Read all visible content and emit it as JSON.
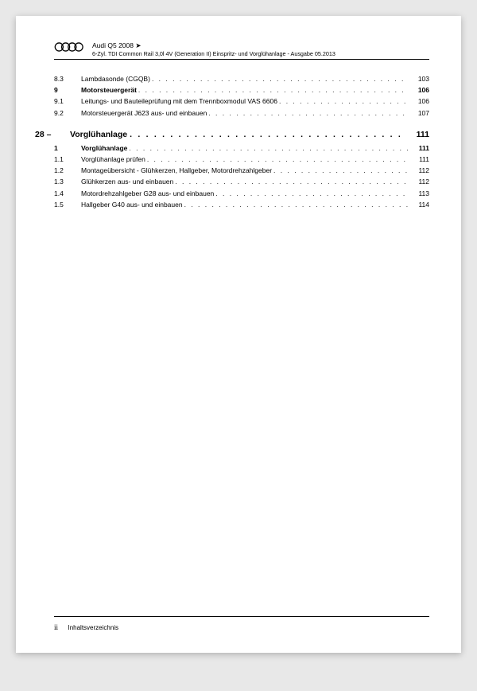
{
  "header": {
    "model": "Audi Q5 2008",
    "arrow": "➤",
    "subtitle": "6-Zyl. TDI Common Rail 3,0l 4V (Generation II) Einspritz- und Vorglühanlage - Ausgabe 05.2013"
  },
  "toc_block1": [
    {
      "num": "8.3",
      "title": "Lambdasonde (CGQB)",
      "page": "103",
      "bold": false
    },
    {
      "num": "9",
      "title": "Motorsteuergerät",
      "page": "106",
      "bold": true
    },
    {
      "num": "9.1",
      "title": "Leitungs- und Bauteileprüfung mit dem Trennboxmodul VAS 6606",
      "page": "106",
      "bold": false
    },
    {
      "num": "9.2",
      "title": "Motorsteuergerät J623 aus- und einbauen",
      "page": "107",
      "bold": false
    }
  ],
  "chapter": {
    "num": "28 –",
    "title": "Vorglühanlage",
    "page": "111"
  },
  "toc_block2": [
    {
      "num": "1",
      "title": "Vorglühanlage",
      "page": "111",
      "bold": true
    },
    {
      "num": "1.1",
      "title": "Vorglühanlage prüfen",
      "page": "111",
      "bold": false
    },
    {
      "num": "1.2",
      "title": "Montageübersicht - Glühkerzen, Hallgeber, Motordrehzahlgeber",
      "page": "112",
      "bold": false
    },
    {
      "num": "1.3",
      "title": "Glühkerzen aus- und einbauen",
      "page": "112",
      "bold": false
    },
    {
      "num": "1.4",
      "title": "Motordrehzahlgeber G28 aus- und einbauen",
      "page": "113",
      "bold": false
    },
    {
      "num": "1.5",
      "title": "Hallgeber G40 aus- und einbauen",
      "page": "114",
      "bold": false
    }
  ],
  "footer": {
    "page_num": "ii",
    "label": "Inhaltsverzeichnis"
  },
  "colors": {
    "page_bg": "#ffffff",
    "outer_bg": "#e8e8e8",
    "text": "#000000",
    "rule": "#000000"
  }
}
